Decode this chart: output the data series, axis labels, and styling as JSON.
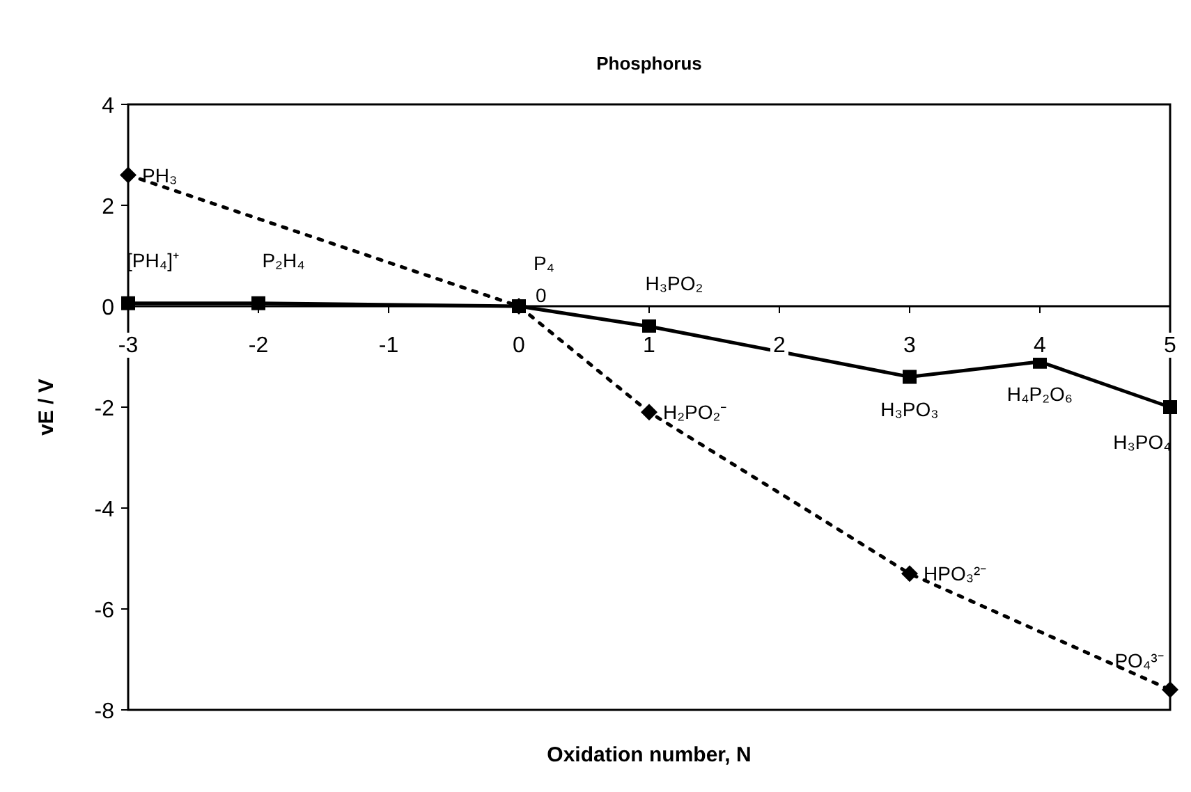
{
  "chart_data": {
    "type": "line",
    "title": "Phosphorus",
    "xlabel": "Oxidation number, N",
    "ylabel": "vE / V",
    "series": [
      {
        "color": "#000000",
        "marker": "square",
        "line_style": "solid",
        "x": [
          -3,
          -2,
          0,
          1,
          3,
          4,
          5
        ],
        "values": [
          0.06,
          0.06,
          0,
          -0.4,
          -1.4,
          -1.1,
          -2.0
        ]
      },
      {
        "color": "#000000",
        "marker": "diamond",
        "line_style": "dotted",
        "x": [
          -3,
          0,
          1,
          3,
          5
        ],
        "values": [
          2.6,
          0,
          -2.1,
          -5.3,
          -7.6
        ]
      }
    ],
    "xlim": [
      -3,
      5
    ],
    "xticks": [
      -3,
      -2,
      -1,
      0,
      1,
      2,
      3,
      4,
      5
    ],
    "ylim": [
      -8,
      4
    ],
    "yticks": [
      -8,
      -6,
      -4,
      -2,
      0,
      2,
      4
    ],
    "grid": false,
    "annotations": [
      {
        "text": "[PH₄]⁺",
        "x": -3,
        "y": 0.06
      },
      {
        "text": "P₂H₄",
        "x": -2,
        "y": 0.06
      },
      {
        "text": "P₄",
        "x": 0,
        "y": 0
      },
      {
        "text": "0",
        "x": 0,
        "y": 0
      },
      {
        "text": "H₃PO₂",
        "x": 1,
        "y": -0.4
      },
      {
        "text": "H₃PO₃",
        "x": 3,
        "y": -1.4
      },
      {
        "text": "H₄P₂O₆",
        "x": 4,
        "y": -1.1
      },
      {
        "text": "H₃PO₄",
        "x": 5,
        "y": -2.0
      },
      {
        "text": "PH₃",
        "x": -3,
        "y": 2.6
      },
      {
        "text": "H₂PO₂⁻",
        "x": 1,
        "y": -2.1
      },
      {
        "text": "HPO₃²⁻",
        "x": 3,
        "y": -5.3
      },
      {
        "text": "PO₄³⁻",
        "x": 5,
        "y": -7.6
      }
    ]
  }
}
